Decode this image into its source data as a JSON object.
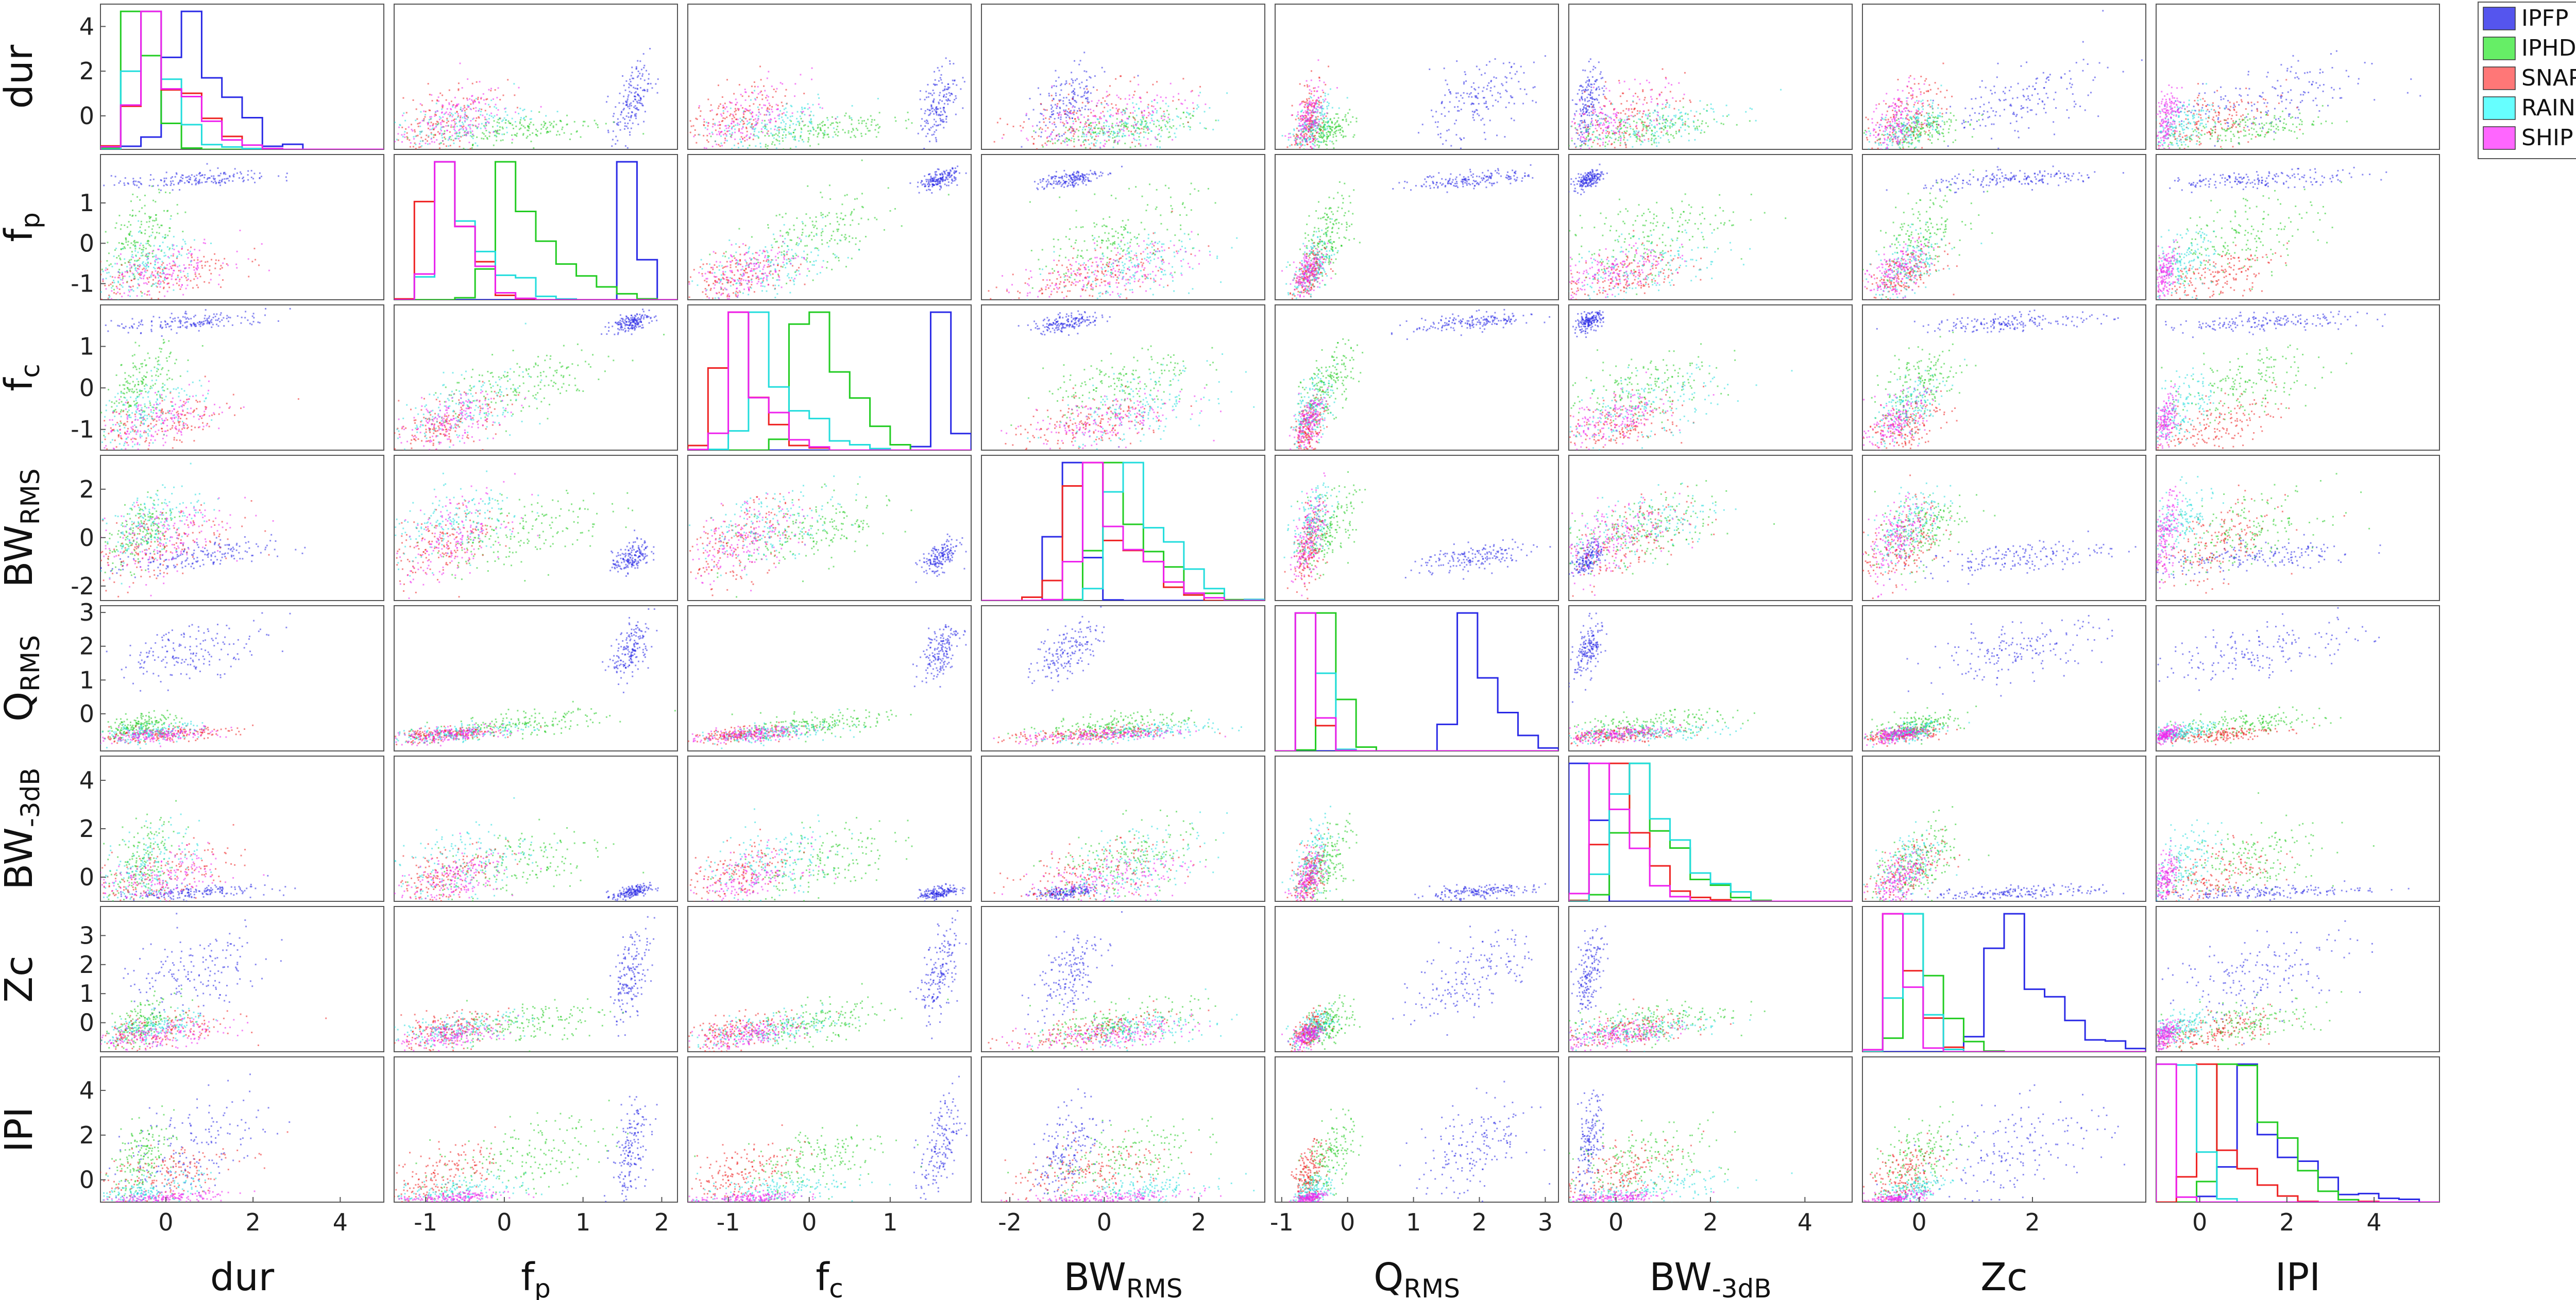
{
  "chart_data": {
    "type": "scatter",
    "matrix": "scatter-plot-matrix with per-class histograms on the diagonal",
    "variables": [
      {
        "id": "dur",
        "label": "dur",
        "sub": "",
        "range": [
          -1.5,
          5
        ],
        "ticks": [
          0,
          2,
          4
        ]
      },
      {
        "id": "fp",
        "label": "f",
        "sub": "p",
        "range": [
          -1.4,
          2.2
        ],
        "ticks": [
          -1,
          0,
          1,
          2
        ]
      },
      {
        "id": "fc",
        "label": "f",
        "sub": "c",
        "range": [
          -1.5,
          2.0
        ],
        "ticks": [
          -1,
          0,
          1
        ]
      },
      {
        "id": "bwrms",
        "label": "BW",
        "sub": "RMS",
        "range": [
          -2.6,
          3.4
        ],
        "ticks": [
          -2,
          0,
          2
        ]
      },
      {
        "id": "qrms",
        "label": "Q",
        "sub": "RMS",
        "range": [
          -1.1,
          3.2
        ],
        "ticks": [
          -1,
          0,
          1,
          2,
          3
        ]
      },
      {
        "id": "bw3db",
        "label": "BW",
        "sub": "-3dB",
        "range": [
          -1.0,
          5.0
        ],
        "ticks": [
          0,
          2,
          4
        ]
      },
      {
        "id": "zc",
        "label": "Zc",
        "sub": "",
        "range": [
          -1.0,
          4.0
        ],
        "ticks": [
          0,
          2
        ]
      },
      {
        "id": "ipi",
        "label": "IPI",
        "sub": "",
        "range": [
          -1.0,
          5.5
        ],
        "ticks": [
          0,
          2,
          4
        ]
      }
    ],
    "row_ticks": {
      "dur": [
        0,
        2,
        4
      ],
      "fp": [
        -1,
        0,
        1
      ],
      "fc": [
        -1,
        0,
        1
      ],
      "bwrms": [
        -2,
        0,
        2
      ],
      "qrms": [
        0,
        1,
        2,
        3
      ],
      "bw3db": [
        0,
        2,
        4
      ],
      "zc": [
        0,
        1,
        2,
        3
      ],
      "ipi": [
        0,
        2,
        4
      ]
    },
    "series": [
      {
        "name": "IPFP",
        "color": "#2a2ae6",
        "legend_color": "#5555ee",
        "centers": {
          "dur": 0.6,
          "fp": 1.6,
          "fc": 1.6,
          "bwrms": -0.8,
          "qrms": 1.9,
          "bw3db": -0.6,
          "zc": 1.7,
          "ipi": 1.4
        },
        "spreads": {
          "dur": 0.9,
          "fp": 0.12,
          "fc": 0.12,
          "bwrms": 0.35,
          "qrms": 0.45,
          "bw3db": 0.15,
          "zc": 0.8,
          "ipi": 1.2
        }
      },
      {
        "name": "IPHD",
        "color": "#22cc22",
        "legend_color": "#66ee66",
        "centers": {
          "dur": -0.6,
          "fp": 0.2,
          "fc": 0.1,
          "bwrms": 0.3,
          "qrms": -0.3,
          "bw3db": 0.6,
          "zc": 0.0,
          "ipi": 1.0
        },
        "spreads": {
          "dur": 0.4,
          "fp": 0.55,
          "fc": 0.45,
          "bwrms": 0.8,
          "qrms": 0.2,
          "bw3db": 0.9,
          "zc": 0.4,
          "ipi": 0.9
        }
      },
      {
        "name": "SNAP",
        "color": "#ee2222",
        "legend_color": "#ff7777",
        "centers": {
          "dur": -0.2,
          "fp": -0.8,
          "fc": -0.9,
          "bwrms": -0.3,
          "qrms": -0.6,
          "bw3db": 0.1,
          "zc": -0.3,
          "ipi": 0.3
        },
        "spreads": {
          "dur": 0.9,
          "fp": 0.35,
          "fc": 0.35,
          "bwrms": 0.9,
          "qrms": 0.12,
          "bw3db": 0.7,
          "zc": 0.35,
          "ipi": 0.7
        }
      },
      {
        "name": "RAIN",
        "color": "#22dddd",
        "legend_color": "#66ffff",
        "centers": {
          "dur": -0.4,
          "fp": -0.6,
          "fc": -0.5,
          "bwrms": 0.6,
          "qrms": -0.55,
          "bw3db": 0.5,
          "zc": -0.2,
          "ipi": -0.5
        },
        "spreads": {
          "dur": 0.6,
          "fp": 0.45,
          "fc": 0.45,
          "bwrms": 0.8,
          "qrms": 0.15,
          "bw3db": 0.9,
          "zc": 0.3,
          "ipi": 0.4
        }
      },
      {
        "name": "SHIP",
        "color": "#ee22ee",
        "legend_color": "#ff66ff",
        "centers": {
          "dur": -0.2,
          "fp": -0.7,
          "fc": -0.8,
          "bwrms": 0.0,
          "qrms": -0.6,
          "bw3db": -0.1,
          "zc": -0.4,
          "ipi": -0.8
        },
        "spreads": {
          "dur": 0.8,
          "fp": 0.35,
          "fc": 0.35,
          "bwrms": 0.9,
          "qrms": 0.12,
          "bw3db": 0.6,
          "zc": 0.25,
          "ipi": 0.15
        }
      }
    ],
    "legend_position": "top-right",
    "grid": false
  }
}
